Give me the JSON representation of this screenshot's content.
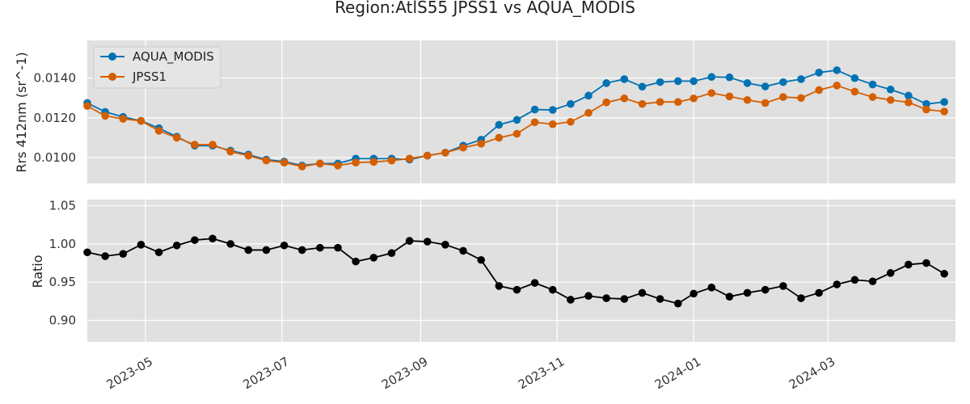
{
  "chart_data": [
    {
      "type": "line",
      "title": "Region:AtlS55 JPSS1 vs AQUA_MODIS",
      "ylabel": "Rrs 412nm (sr^-1)",
      "xlabel": "",
      "ylim": [
        0.0087,
        0.0159
      ],
      "xlim": [
        "2023-04-05",
        "2024-04-27"
      ],
      "yticks": [
        0.01,
        0.012,
        0.014
      ],
      "ytick_labels": [
        "0.0100",
        "0.0120",
        "0.0140"
      ],
      "grid": true,
      "legend_position": "upper-left",
      "x": [
        "2023-04-05",
        "2023-04-13",
        "2023-04-21",
        "2023-04-29",
        "2023-05-07",
        "2023-05-15",
        "2023-05-23",
        "2023-05-31",
        "2023-06-08",
        "2023-06-16",
        "2023-06-24",
        "2023-07-02",
        "2023-07-10",
        "2023-07-18",
        "2023-07-26",
        "2023-08-03",
        "2023-08-11",
        "2023-08-19",
        "2023-08-27",
        "2023-09-04",
        "2023-09-12",
        "2023-09-20",
        "2023-09-28",
        "2023-10-06",
        "2023-10-14",
        "2023-10-22",
        "2023-10-30",
        "2023-11-07",
        "2023-11-15",
        "2023-11-23",
        "2023-12-01",
        "2023-12-09",
        "2023-12-17",
        "2023-12-25",
        "2024-01-01",
        "2024-01-09",
        "2024-01-17",
        "2024-01-25",
        "2024-02-02",
        "2024-02-10",
        "2024-02-18",
        "2024-02-26",
        "2024-03-05",
        "2024-03-13",
        "2024-03-21",
        "2024-03-29",
        "2024-04-06",
        "2024-04-14",
        "2024-04-22"
      ],
      "series": [
        {
          "name": "AQUA_MODIS",
          "color": "#0072b2",
          "values": [
            0.01275,
            0.0123,
            0.01205,
            0.01185,
            0.01148,
            0.01105,
            0.0106,
            0.0106,
            0.01035,
            0.01015,
            0.0099,
            0.0098,
            0.0096,
            0.0097,
            0.0097,
            0.00995,
            0.00995,
            0.00995,
            0.0099,
            0.0101,
            0.01025,
            0.0106,
            0.0109,
            0.01165,
            0.0119,
            0.01242,
            0.0124,
            0.0127,
            0.01312,
            0.01375,
            0.01395,
            0.01357,
            0.0138,
            0.01385,
            0.01385,
            0.01406,
            0.01404,
            0.01375,
            0.01358,
            0.0138,
            0.01395,
            0.01428,
            0.0144,
            0.014,
            0.01368,
            0.01343,
            0.01312,
            0.0127,
            0.0128
          ]
        },
        {
          "name": "JPSS1",
          "color": "#d55e00",
          "values": [
            0.0126,
            0.0121,
            0.01195,
            0.01185,
            0.01135,
            0.011,
            0.01065,
            0.01065,
            0.0103,
            0.0101,
            0.00985,
            0.00975,
            0.00955,
            0.0097,
            0.0096,
            0.00975,
            0.00978,
            0.00985,
            0.00995,
            0.0101,
            0.01025,
            0.0105,
            0.0107,
            0.011,
            0.0112,
            0.01178,
            0.01168,
            0.0118,
            0.01225,
            0.01278,
            0.01298,
            0.0127,
            0.0128,
            0.0128,
            0.01298,
            0.01325,
            0.01308,
            0.0129,
            0.01275,
            0.01305,
            0.013,
            0.0134,
            0.01363,
            0.01332,
            0.01305,
            0.0129,
            0.01278,
            0.01242,
            0.01232
          ]
        }
      ]
    },
    {
      "type": "line",
      "title": "",
      "ylabel": "Ratio",
      "xlabel": "",
      "ylim": [
        0.872,
        1.058
      ],
      "xlim": [
        "2023-04-05",
        "2024-04-27"
      ],
      "yticks": [
        0.9,
        0.95,
        1.0,
        1.05
      ],
      "ytick_labels": [
        "0.90",
        "0.95",
        "1.00",
        "1.05"
      ],
      "xticks": [
        "2023-05-01",
        "2023-07-01",
        "2023-09-01",
        "2023-11-01",
        "2024-01-01",
        "2024-03-01"
      ],
      "xtick_labels": [
        "2023-05",
        "2023-07",
        "2023-09",
        "2023-11",
        "2024-01",
        "2024-03"
      ],
      "grid": true,
      "series": [
        {
          "color": "#000000",
          "values": [
            0.989,
            0.984,
            0.987,
            0.999,
            0.989,
            0.998,
            1.005,
            1.007,
            1.0,
            0.992,
            0.992,
            0.998,
            0.992,
            0.995,
            0.995,
            0.977,
            0.982,
            0.988,
            1.004,
            1.003,
            0.999,
            0.991,
            0.979,
            0.945,
            0.94,
            0.949,
            0.94,
            0.927,
            0.932,
            0.929,
            0.928,
            0.936,
            0.928,
            0.922,
            0.935,
            0.943,
            0.931,
            0.936,
            0.94,
            0.945,
            0.929,
            0.936,
            0.947,
            0.953,
            0.951,
            0.962,
            0.973,
            0.975,
            0.961
          ]
        }
      ]
    }
  ]
}
